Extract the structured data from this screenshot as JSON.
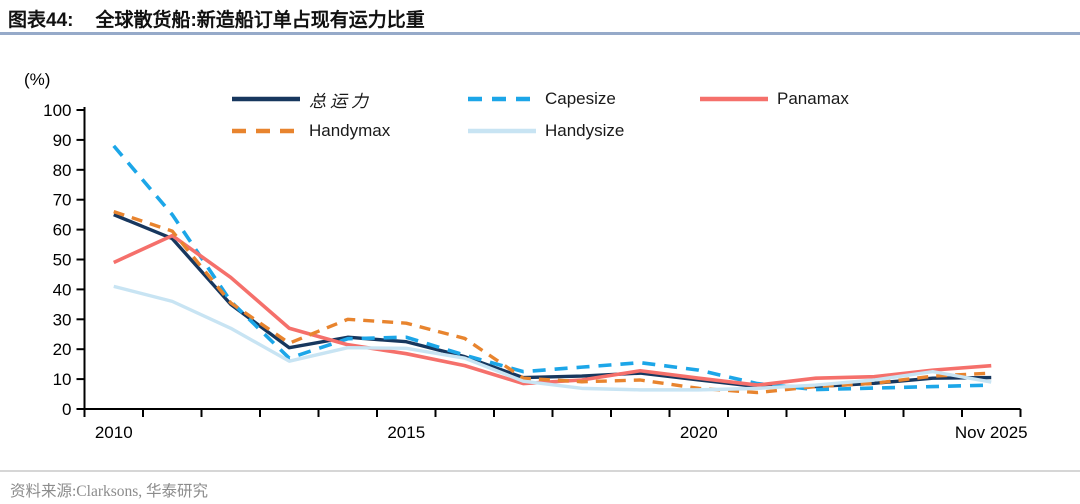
{
  "header": {
    "figure_label": "图表44:",
    "title": "全球散货船:新造船订单占现有运力比重"
  },
  "source": {
    "text": "资料来源:Clarksons, 华泰研究"
  },
  "chart_data": {
    "type": "line",
    "title": "全球散货船:新造船订单占现有运力比重",
    "unit_label": "(%)",
    "x_categories": [
      "2010",
      "2011",
      "2012",
      "2013",
      "2014",
      "2015",
      "2016",
      "2017",
      "2018",
      "2019",
      "2020",
      "2021",
      "2022",
      "2023",
      "2024",
      "Nov 2025"
    ],
    "x_tick_labels": [
      {
        "i": 0,
        "label": "2010"
      },
      {
        "i": 5,
        "label": "2015"
      },
      {
        "i": 10,
        "label": "2020"
      },
      {
        "i": 15,
        "label": "Nov 2025"
      }
    ],
    "ylim": [
      0,
      100
    ],
    "y_ticks": [
      0,
      10,
      20,
      30,
      40,
      50,
      60,
      70,
      80,
      90,
      100
    ],
    "grid": false,
    "legend_position": "top",
    "series": [
      {
        "name": "总运力",
        "color": "#17375e",
        "dash": null,
        "width": 3.4,
        "values": [
          65,
          57,
          35,
          20.5,
          24,
          22.5,
          17.5,
          10.5,
          11,
          12,
          9.7,
          7.5,
          7.5,
          8.6,
          10.3,
          10.5
        ]
      },
      {
        "name": "Capesize",
        "color": "#1ca6e8",
        "dash": "13 9",
        "width": 3.6,
        "values": [
          88,
          65,
          36,
          17,
          23.5,
          24,
          18,
          12.5,
          14,
          15.5,
          13,
          8.5,
          6.5,
          7,
          7.5,
          8
        ]
      },
      {
        "name": "Panamax",
        "color": "#f5706b",
        "dash": null,
        "width": 3.6,
        "values": [
          49,
          58,
          44,
          27,
          21.5,
          18.5,
          14.5,
          8.5,
          9.7,
          12.8,
          10.3,
          8,
          10.3,
          10.8,
          13,
          14.5
        ]
      },
      {
        "name": "Handymax",
        "color": "#e8842e",
        "dash": "11 8",
        "width": 3.4,
        "values": [
          66,
          59.5,
          35.5,
          22,
          30,
          28.7,
          23.6,
          10.3,
          9.1,
          9.7,
          6.9,
          5.5,
          7.5,
          8.6,
          11,
          12
        ]
      },
      {
        "name": "Handysize",
        "color": "#c8e4f3",
        "dash": null,
        "width": 3.4,
        "values": [
          41,
          36,
          27,
          16,
          20.5,
          20.3,
          17,
          9.3,
          6.9,
          6.4,
          6.4,
          6.9,
          8,
          9.7,
          12.5,
          9
        ]
      }
    ]
  }
}
